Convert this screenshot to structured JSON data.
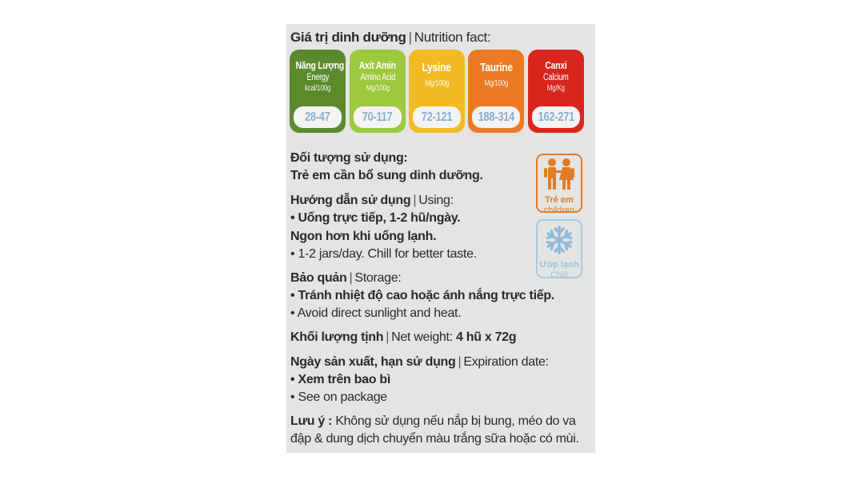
{
  "nutrition": {
    "title_vi": "Giá trị dinh dưỡng",
    "title_en": "Nutrition fact:",
    "badges": [
      {
        "name": "Năng Lượng",
        "name_en": "Energy",
        "unit": "kcal/100g",
        "value": "28-47",
        "color": "#5b8a2c"
      },
      {
        "name": "Axit Amin",
        "name_en": "Amino Acid",
        "unit": "Mg/100g",
        "value": "70-117",
        "color": "#9cc93d"
      },
      {
        "name": "Lysine",
        "name_en": "",
        "unit": "Mg/100g",
        "value": "72-121",
        "color": "#f2bb25"
      },
      {
        "name": "Taurine",
        "name_en": "",
        "unit": "Mg/100g",
        "value": "188-314",
        "color": "#ec7a22"
      },
      {
        "name": "Canxi",
        "name_en": "Calcium",
        "unit": "Mg/Kg",
        "value": "162-271",
        "color": "#d9261c"
      }
    ]
  },
  "target": {
    "heading": "Đối tượng sử dụng:",
    "text": "Trẻ em cần bổ sung dinh dưỡng."
  },
  "usage": {
    "heading_vi": "Hướng dẫn sử dụng",
    "heading_en": "Using:",
    "line1": "• Uống trực tiếp, 1-2 hũ/ngày.",
    "line2": "Ngon hơn khi uống lạnh.",
    "line3": "• 1-2 jars/day. Chill for better taste."
  },
  "storage": {
    "heading_vi": "Bảo quản",
    "heading_en": "Storage:",
    "line1": "• Tránh nhiệt độ cao hoặc ánh nắng trực tiếp.",
    "line2": "• Avoid direct sunlight and heat."
  },
  "weight": {
    "label_vi": "Khối lượng tịnh",
    "label_en": "Net weight:",
    "value": "4 hũ x 72g"
  },
  "expiry": {
    "heading_vi": "Ngày sản xuất, hạn sử dụng",
    "heading_en": "Expiration date:",
    "line1": "• Xem trên bao bì",
    "line2": "• See on package"
  },
  "note": {
    "label": "Lưu ý :",
    "line1": "Không sử dụng nếu nắp bị bung, méo do va",
    "line2": "đập & dung dịch chuyển màu trắng sữa hoặc có mùi."
  },
  "icons": {
    "children": {
      "label_vi": "Trẻ em",
      "label_en": "children",
      "color": "#e07b26",
      "icon": "children-icon"
    },
    "chill": {
      "label_vi": "Ướp lạnh",
      "label_en": "Chill",
      "color": "#9cc3dd",
      "icon": "snowflake-icon"
    }
  }
}
